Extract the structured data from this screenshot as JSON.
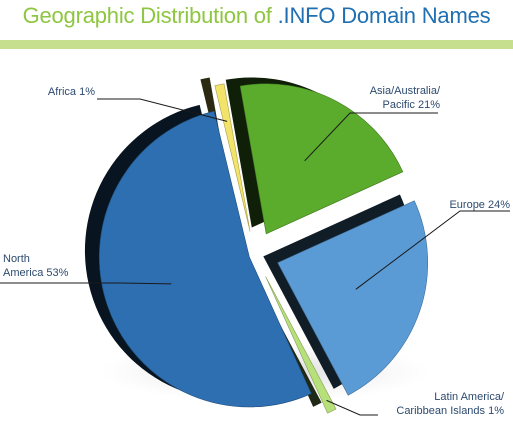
{
  "title": {
    "part_a": "Geographic Distribution of ",
    "part_b": ".INFO Domain Names"
  },
  "colors": {
    "title_green": "#8dc63f",
    "title_blue": "#1f6fb2",
    "rule": "#c6df8f",
    "label_text": "#2c4a6e",
    "leader": "#1a1a1a"
  },
  "labels": {
    "africa": [
      "Africa 1%"
    ],
    "asia": [
      "Asia/Australia/",
      "Pacific 21%"
    ],
    "europe": [
      "Europe 24%"
    ],
    "north_america": [
      "North",
      "America 53%"
    ],
    "latin_america": [
      "Latin America/",
      "Caribbean Islands 1%"
    ]
  },
  "chart_data": {
    "type": "pie",
    "style": "3d-exploded",
    "title": "Geographic Distribution of .INFO Domain Names",
    "unit": "%",
    "categories": [
      "Asia/Australia/Pacific",
      "Europe",
      "Latin America/Caribbean Islands",
      "North America",
      "Africa"
    ],
    "values": [
      21,
      24,
      1,
      53,
      1
    ],
    "colors": [
      "#5bab2c",
      "#5b9bd5",
      "#b8e07a",
      "#2d6fb0",
      "#f2e36a"
    ],
    "legend": "none (direct labels with leader lines)"
  }
}
